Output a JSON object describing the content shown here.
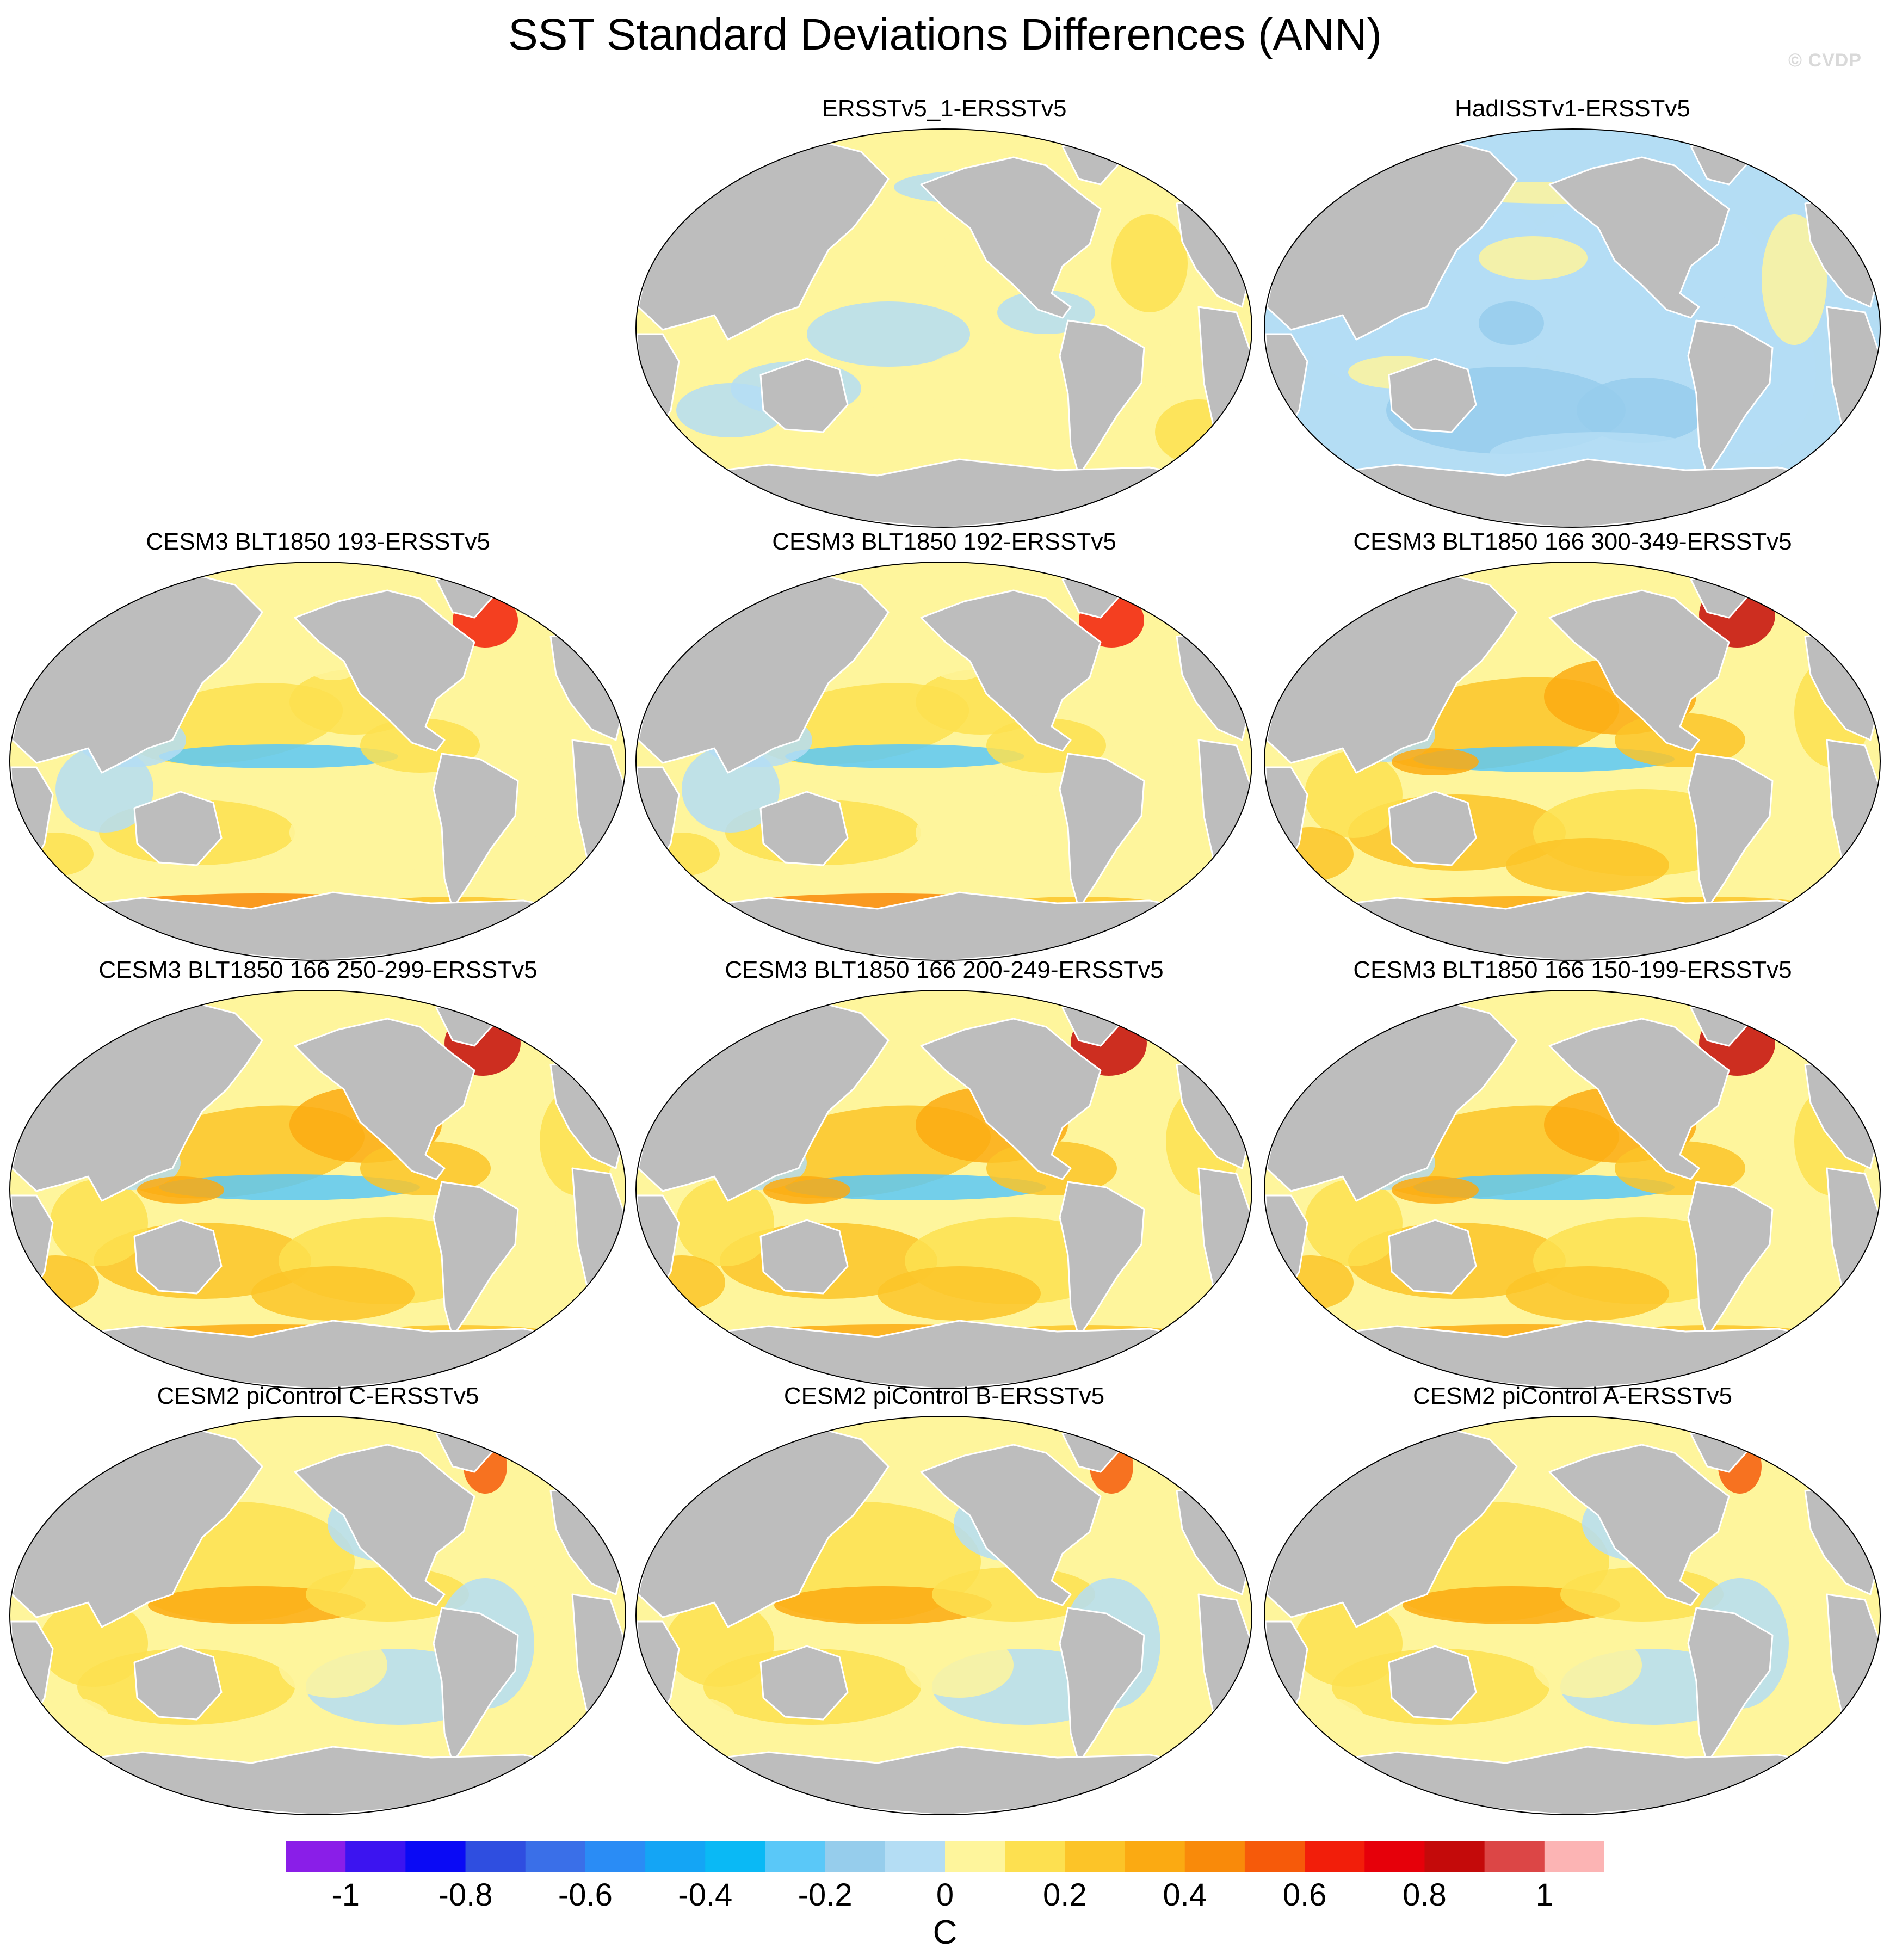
{
  "figure": {
    "title": "SST Standard Deviations Differences (ANN)",
    "credit": "© CVDP"
  },
  "panels": [
    {
      "title": "ERSSTv5_1-ERSSTv5",
      "pattern": "mixed-weak"
    },
    {
      "title": "HadISSTv1-ERSSTv5",
      "pattern": "mostly-negative"
    },
    {
      "title": "CESM3 BLT1850 193-ERSSTv5",
      "pattern": "cesm3"
    },
    {
      "title": "CESM3 BLT1850 192-ERSSTv5",
      "pattern": "cesm3"
    },
    {
      "title": "CESM3 BLT1850 166 300-349-ERSSTv5",
      "pattern": "cesm3-strong"
    },
    {
      "title": "CESM3 BLT1850 166 250-299-ERSSTv5",
      "pattern": "cesm3-strong"
    },
    {
      "title": "CESM3 BLT1850 166 200-249-ERSSTv5",
      "pattern": "cesm3-strong"
    },
    {
      "title": "CESM3 BLT1850 166 150-199-ERSSTv5",
      "pattern": "cesm3-strong"
    },
    {
      "title": "CESM2 piControl C-ERSSTv5",
      "pattern": "cesm2"
    },
    {
      "title": "CESM2 piControl B-ERSSTv5",
      "pattern": "cesm2"
    },
    {
      "title": "CESM2 piControl A-ERSSTv5",
      "pattern": "cesm2"
    }
  ],
  "colorbar": {
    "units": "C",
    "colors": [
      "#8a1ee8",
      "#3c14f0",
      "#0a0af5",
      "#2f4ee0",
      "#3a6fe8",
      "#2a8cf5",
      "#14a5f5",
      "#0ab9f5",
      "#5ac8f8",
      "#96cdec",
      "#b4ddf4",
      "#fef59c",
      "#fde050",
      "#fcc428",
      "#fbaa12",
      "#f98a0a",
      "#f65a0a",
      "#f21e0a",
      "#e6000a",
      "#c40a0a",
      "#dc4646",
      "#fcb4b4"
    ],
    "tick_labels": [
      "-1",
      "-0.8",
      "-0.6",
      "-0.4",
      "-0.2",
      "0",
      "0.2",
      "0.4",
      "0.6",
      "0.8",
      "1"
    ],
    "tick_values": [
      -1,
      -0.8,
      -0.6,
      -0.4,
      -0.2,
      0,
      0.2,
      0.4,
      0.6,
      0.8,
      1
    ],
    "range": [
      -1.1,
      1.1
    ]
  },
  "map_colors": {
    "land": "#bdbdbd",
    "land_border": "#ffffff",
    "ocean_neutral_pos": "#fef59c",
    "ocean_neutral_neg": "#b4ddf4"
  }
}
